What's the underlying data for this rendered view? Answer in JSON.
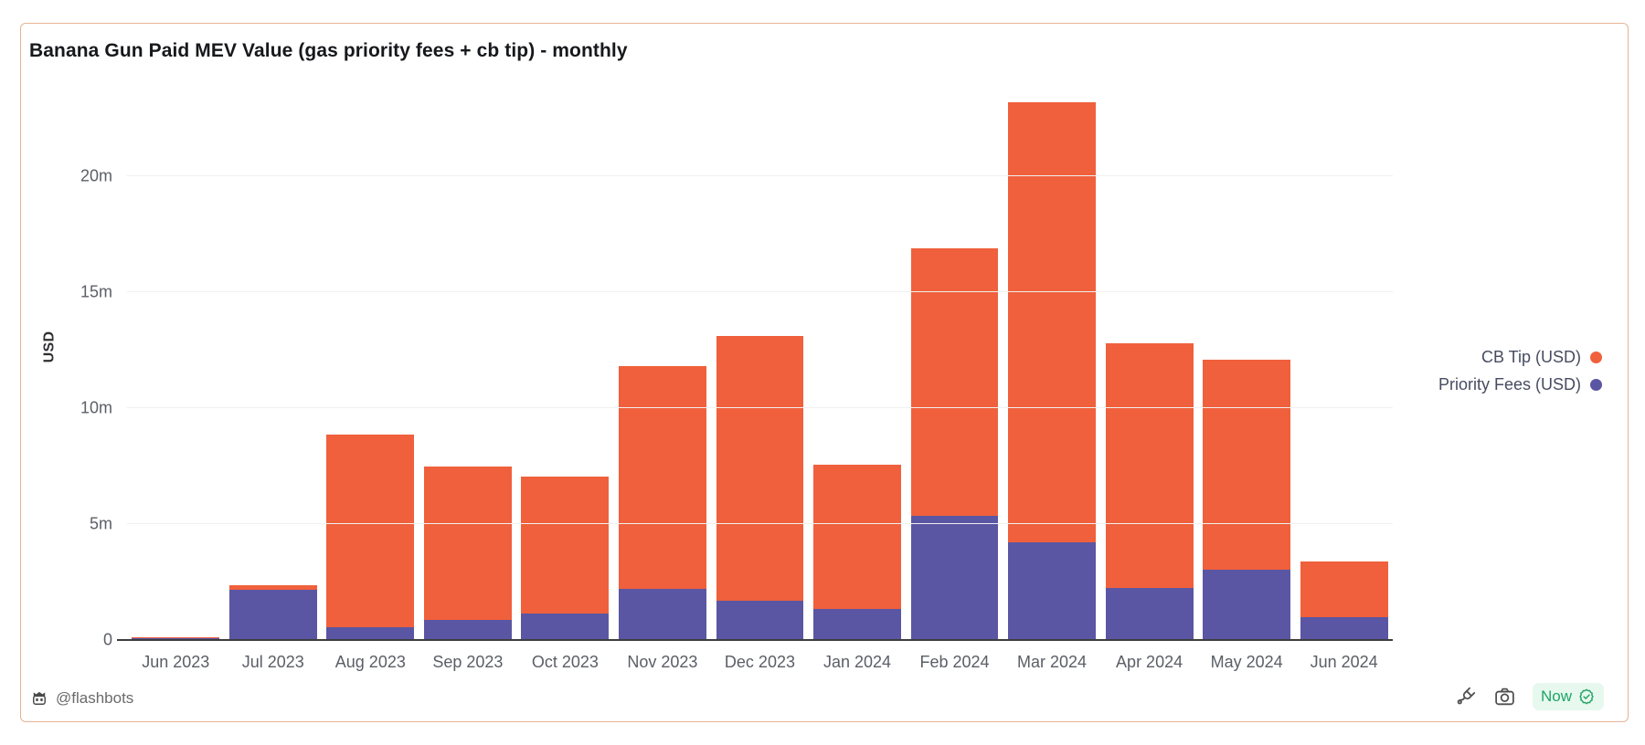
{
  "card": {
    "title": "Banana Gun Paid MEV Value (gas priority fees + cb tip) - monthly",
    "footer": {
      "handle": "@flashbots",
      "now_badge_label": "Now"
    }
  },
  "colors": {
    "cb_tip_orange": "#f0603c",
    "priority_fees_purple": "#5a56a3",
    "card_border": "#e6b394",
    "gridline": "#f0f0f0",
    "axis": "#3d3d3f",
    "tick_text": "#5c5f66",
    "legend_text": "#474c60",
    "now_green": "#1ea567",
    "now_badge_bg": "#e7f8ee",
    "footer_gray": "#6a6a6a"
  },
  "chart_data": {
    "type": "bar",
    "stacked": true,
    "title": "Banana Gun Paid MEV Value (gas priority fees + cb tip) - monthly",
    "xlabel": "",
    "ylabel": "USD",
    "unit": "m = millions of USD",
    "grid": true,
    "legend_position": "right",
    "ymax": 24.1,
    "yticks": [
      {
        "label": "0",
        "value": 0
      },
      {
        "label": "5m",
        "value": 5
      },
      {
        "label": "10m",
        "value": 10
      },
      {
        "label": "15m",
        "value": 15
      },
      {
        "label": "20m",
        "value": 20
      }
    ],
    "categories": [
      "Jun 2023",
      "Jul 2023",
      "Aug 2023",
      "Sep 2023",
      "Oct 2023",
      "Nov 2023",
      "Dec 2023",
      "Jan 2024",
      "Feb 2024",
      "Mar 2024",
      "Apr 2024",
      "May 2024",
      "Jun 2024"
    ],
    "series": [
      {
        "name": "Priority Fees (USD)",
        "color": "#5a56a3",
        "stack_order": "bottom",
        "values": [
          0.07,
          2.15,
          0.55,
          0.85,
          1.15,
          2.2,
          1.7,
          1.35,
          5.35,
          4.2,
          2.25,
          3.05,
          1.0
        ]
      },
      {
        "name": "CB Tip (USD)",
        "color": "#f0603c",
        "stack_order": "top",
        "values": [
          0.03,
          0.2,
          8.3,
          6.65,
          5.9,
          9.6,
          11.4,
          6.2,
          11.55,
          19.0,
          10.55,
          9.05,
          2.4
        ]
      }
    ],
    "stack_totals": [
      0.1,
      2.35,
      8.85,
      7.5,
      7.05,
      11.8,
      13.1,
      7.55,
      16.9,
      23.2,
      12.8,
      12.1,
      3.4
    ],
    "legend": [
      {
        "label": "CB Tip (USD)",
        "color": "#f0603c"
      },
      {
        "label": "Priority Fees (USD)",
        "color": "#5a56a3"
      }
    ]
  }
}
